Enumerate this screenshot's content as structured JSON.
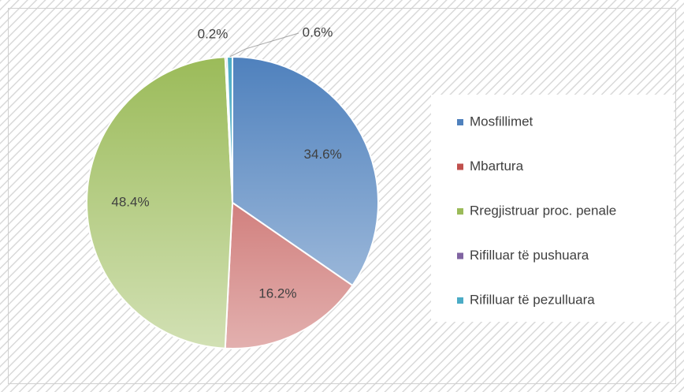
{
  "chart_data": {
    "type": "pie",
    "categories": [
      "Mosfillimet",
      "Mbartura",
      "Rregjistruar proc. penale",
      "Rifilluar të pushuara",
      "Rifilluar të pezulluara"
    ],
    "values": [
      34.6,
      16.2,
      48.4,
      0.2,
      0.6
    ],
    "value_labels": [
      "34.6%",
      "16.2%",
      "48.4%",
      "0.2%",
      "0.6%"
    ],
    "colors": [
      "#4f81bd",
      "#c0504d",
      "#9bbb59",
      "#8064a2",
      "#4bacc6"
    ],
    "legend": "right"
  }
}
